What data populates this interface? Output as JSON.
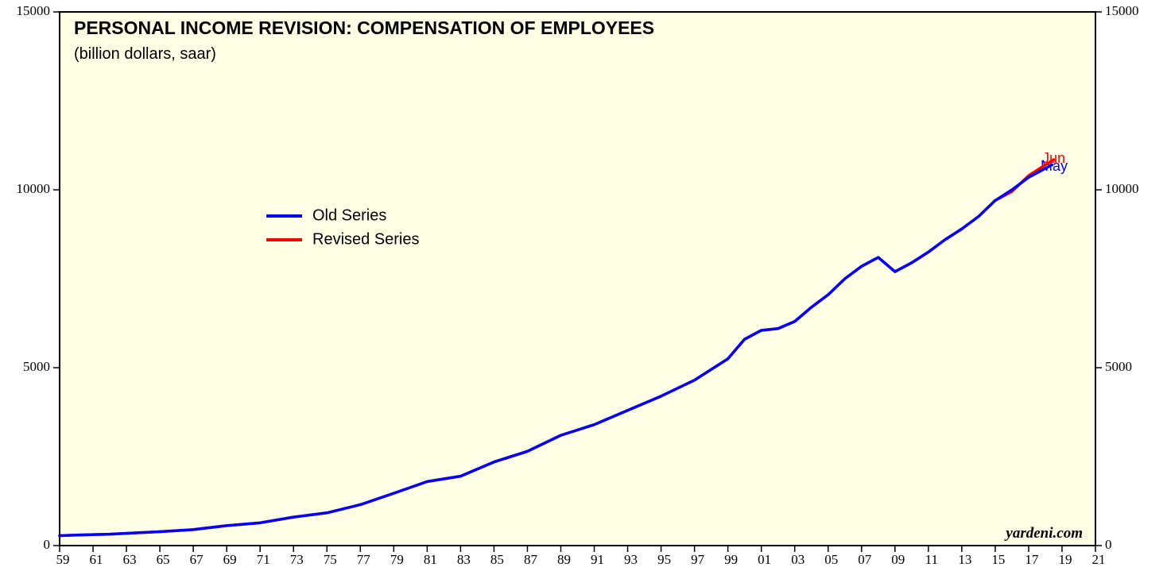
{
  "chart_data": {
    "type": "line",
    "title": "PERSONAL INCOME REVISION: COMPENSATION OF EMPLOYEES",
    "subtitle": "(billion dollars, saar)",
    "watermark": "yardeni.com",
    "annotations": [
      {
        "text": "Jun",
        "color": "#ff0000"
      },
      {
        "text": "May",
        "color": "#0000ff"
      }
    ],
    "xlim": [
      1959,
      2021
    ],
    "xticks": [
      {
        "value": 1959,
        "label": "59"
      },
      {
        "value": 1961,
        "label": "61"
      },
      {
        "value": 1963,
        "label": "63"
      },
      {
        "value": 1965,
        "label": "65"
      },
      {
        "value": 1967,
        "label": "67"
      },
      {
        "value": 1969,
        "label": "69"
      },
      {
        "value": 1971,
        "label": "71"
      },
      {
        "value": 1973,
        "label": "73"
      },
      {
        "value": 1975,
        "label": "75"
      },
      {
        "value": 1977,
        "label": "77"
      },
      {
        "value": 1979,
        "label": "79"
      },
      {
        "value": 1981,
        "label": "81"
      },
      {
        "value": 1983,
        "label": "83"
      },
      {
        "value": 1985,
        "label": "85"
      },
      {
        "value": 1987,
        "label": "87"
      },
      {
        "value": 1989,
        "label": "89"
      },
      {
        "value": 1991,
        "label": "91"
      },
      {
        "value": 1993,
        "label": "93"
      },
      {
        "value": 1995,
        "label": "95"
      },
      {
        "value": 1997,
        "label": "97"
      },
      {
        "value": 1999,
        "label": "99"
      },
      {
        "value": 2001,
        "label": "01"
      },
      {
        "value": 2003,
        "label": "03"
      },
      {
        "value": 2005,
        "label": "05"
      },
      {
        "value": 2007,
        "label": "07"
      },
      {
        "value": 2009,
        "label": "09"
      },
      {
        "value": 2011,
        "label": "11"
      },
      {
        "value": 2013,
        "label": "13"
      },
      {
        "value": 2015,
        "label": "15"
      },
      {
        "value": 2017,
        "label": "17"
      },
      {
        "value": 2019,
        "label": "19"
      },
      {
        "value": 2021,
        "label": "21"
      }
    ],
    "ylim": [
      0,
      15000
    ],
    "yticks": [
      0,
      5000,
      10000,
      15000
    ],
    "y2lim": [
      0,
      15000
    ],
    "y2ticks": [
      0,
      5000,
      10000,
      15000
    ],
    "legend": "upper left",
    "series": [
      {
        "name": "Revised Series",
        "color": "#ff0000",
        "x": [
          1959,
          1960,
          1962,
          1965,
          1967,
          1969,
          1971,
          1973,
          1975,
          1977,
          1979,
          1981,
          1983,
          1985,
          1987,
          1989,
          1991,
          1993,
          1995,
          1997,
          1999,
          2000,
          2001,
          2002,
          2003,
          2004,
          2005,
          2006,
          2007,
          2008,
          2009,
          2010,
          2011,
          2012,
          2013,
          2014,
          2015,
          2016,
          2017,
          2018.5
        ],
        "values": [
          280,
          295,
          320,
          390,
          450,
          560,
          640,
          800,
          920,
          1150,
          1470,
          1800,
          1950,
          2350,
          2650,
          3100,
          3400,
          3800,
          4200,
          4650,
          5250,
          5800,
          6050,
          6100,
          6300,
          6700,
          7050,
          7500,
          7850,
          8100,
          7700,
          7950,
          8250,
          8600,
          8900,
          9250,
          9700,
          9950,
          10400,
          10850
        ]
      },
      {
        "name": "Old Series",
        "color": "#0000ff",
        "x": [
          1959,
          1960,
          1962,
          1965,
          1967,
          1969,
          1971,
          1973,
          1975,
          1977,
          1979,
          1981,
          1983,
          1985,
          1987,
          1989,
          1991,
          1993,
          1995,
          1997,
          1999,
          2000,
          2001,
          2002,
          2003,
          2004,
          2005,
          2006,
          2007,
          2008,
          2009,
          2010,
          2011,
          2012,
          2013,
          2014,
          2015,
          2016,
          2017,
          2018.4
        ],
        "values": [
          280,
          295,
          320,
          390,
          450,
          560,
          640,
          800,
          920,
          1150,
          1470,
          1800,
          1950,
          2350,
          2650,
          3100,
          3400,
          3800,
          4200,
          4650,
          5250,
          5800,
          6050,
          6100,
          6300,
          6700,
          7050,
          7500,
          7850,
          8100,
          7700,
          7950,
          8250,
          8600,
          8900,
          9250,
          9700,
          10000,
          10350,
          10700
        ]
      }
    ]
  }
}
